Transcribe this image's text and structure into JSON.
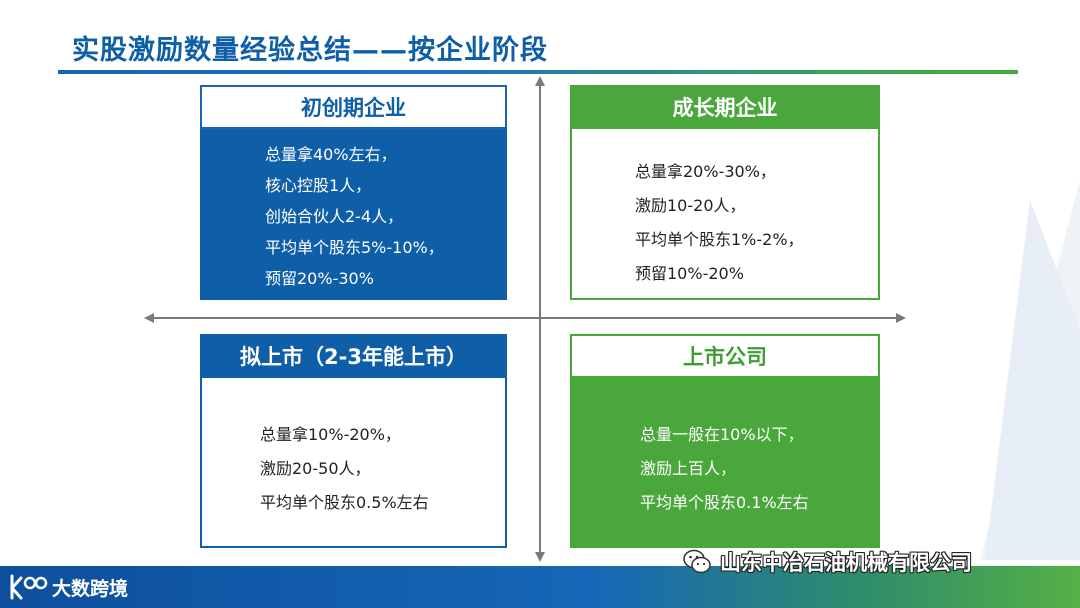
{
  "slide": {
    "title": "实股激励数量经验总结——按企业阶段"
  },
  "quadrants": {
    "top_left": {
      "header": "初创期企业",
      "lines": [
        "总量拿40%左右，",
        "核心控股1人，",
        "创始合伙人2-4人，",
        "平均单个股东5%-10%，",
        "预留20%-30%"
      ]
    },
    "top_right": {
      "header": "成长期企业",
      "lines": [
        "总量拿20%-30%，",
        "激励10-20人，",
        "平均单个股东1%-2%，",
        "预留10%-20%"
      ]
    },
    "bottom_left": {
      "header": "拟上市（2-3年能上市）",
      "lines": [
        "总量拿10%-20%，",
        "激励20-50人，",
        "平均单个股东0.5%左右"
      ]
    },
    "bottom_right": {
      "header": "上市公司",
      "lines": [
        "总量一般在10%以下，",
        "激励上百人，",
        "平均单个股东0.1%左右"
      ]
    }
  },
  "footer": {
    "brand": "大数跨境",
    "watermark": "山东中冶石油机械有限公司"
  },
  "icons": {
    "brand_logo": "kdo-logo-icon",
    "watermark_icon": "wechat-icon",
    "axes": [
      "arrow-left-icon",
      "arrow-right-icon",
      "arrow-up-icon",
      "arrow-down-icon"
    ]
  },
  "colors": {
    "blue": "#0f5ea8",
    "green": "#4aa73b",
    "axis": "#777777"
  }
}
